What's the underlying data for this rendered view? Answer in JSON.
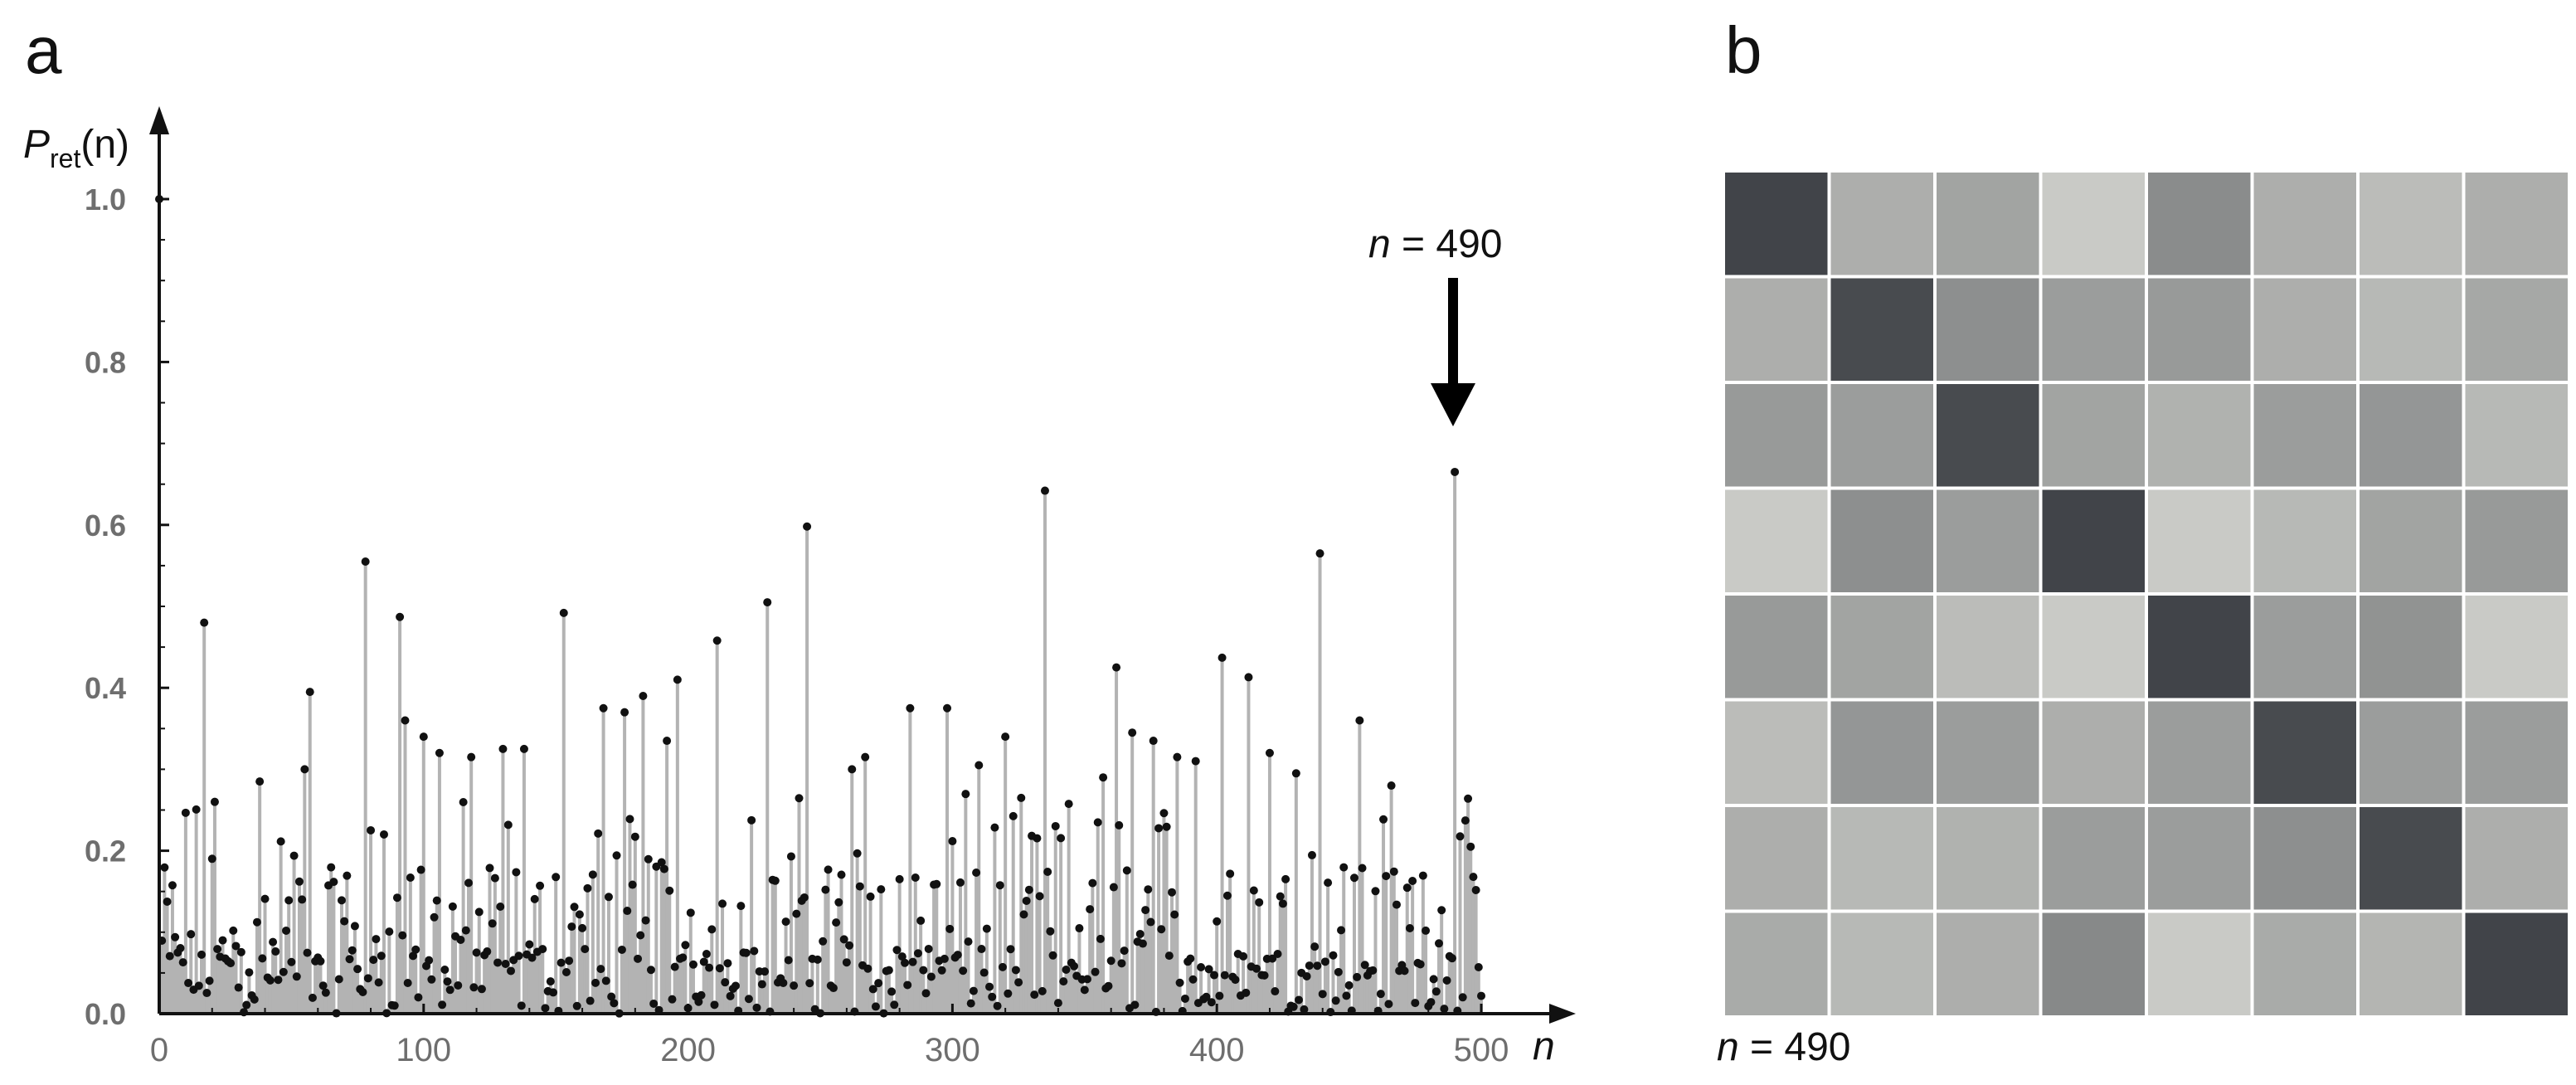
{
  "panels": {
    "a": {
      "label": "a"
    },
    "b": {
      "label": "b"
    }
  },
  "chart_data": [
    {
      "type": "scatter",
      "style": "stem",
      "panel": "a",
      "ylabel_main": "P",
      "ylabel_sub": "ret",
      "ylabel_arg": "(n)",
      "xlabel": "n",
      "xlim": [
        0,
        500
      ],
      "ylim": [
        0,
        1.0
      ],
      "x_ticks": [
        0,
        100,
        200,
        300,
        400,
        500
      ],
      "y_ticks": [
        "0.0",
        "0.2",
        "0.4",
        "0.6",
        "0.8",
        "1.0"
      ],
      "grid": false,
      "colors": {
        "stem": "#b3b3b3",
        "dot": "#111111",
        "axis": "#111111",
        "tick": "#6e6e6e"
      },
      "notable_points": [
        {
          "x": 0,
          "y": 1.0
        },
        {
          "x": 17,
          "y": 0.48
        },
        {
          "x": 21,
          "y": 0.26
        },
        {
          "x": 38,
          "y": 0.285
        },
        {
          "x": 55,
          "y": 0.3
        },
        {
          "x": 57,
          "y": 0.395
        },
        {
          "x": 78,
          "y": 0.555
        },
        {
          "x": 85,
          "y": 0.22
        },
        {
          "x": 91,
          "y": 0.487
        },
        {
          "x": 93,
          "y": 0.36
        },
        {
          "x": 100,
          "y": 0.34
        },
        {
          "x": 106,
          "y": 0.32
        },
        {
          "x": 118,
          "y": 0.315
        },
        {
          "x": 130,
          "y": 0.325
        },
        {
          "x": 138,
          "y": 0.325
        },
        {
          "x": 153,
          "y": 0.492
        },
        {
          "x": 168,
          "y": 0.375
        },
        {
          "x": 176,
          "y": 0.37
        },
        {
          "x": 183,
          "y": 0.39
        },
        {
          "x": 192,
          "y": 0.335
        },
        {
          "x": 196,
          "y": 0.41
        },
        {
          "x": 211,
          "y": 0.458
        },
        {
          "x": 230,
          "y": 0.505
        },
        {
          "x": 245,
          "y": 0.598
        },
        {
          "x": 262,
          "y": 0.3
        },
        {
          "x": 267,
          "y": 0.315
        },
        {
          "x": 284,
          "y": 0.375
        },
        {
          "x": 298,
          "y": 0.375
        },
        {
          "x": 310,
          "y": 0.305
        },
        {
          "x": 320,
          "y": 0.34
        },
        {
          "x": 335,
          "y": 0.642
        },
        {
          "x": 357,
          "y": 0.29
        },
        {
          "x": 362,
          "y": 0.425
        },
        {
          "x": 368,
          "y": 0.345
        },
        {
          "x": 376,
          "y": 0.335
        },
        {
          "x": 385,
          "y": 0.315
        },
        {
          "x": 392,
          "y": 0.31
        },
        {
          "x": 402,
          "y": 0.437
        },
        {
          "x": 412,
          "y": 0.413
        },
        {
          "x": 420,
          "y": 0.32
        },
        {
          "x": 430,
          "y": 0.295
        },
        {
          "x": 439,
          "y": 0.565
        },
        {
          "x": 454,
          "y": 0.36
        },
        {
          "x": 466,
          "y": 0.28
        },
        {
          "x": 490,
          "y": 0.665
        },
        {
          "x": 496,
          "y": 0.205
        }
      ],
      "background_points": {
        "count": 500,
        "y_range": [
          0.0,
          0.27
        ],
        "note": "dense cluster of small values"
      },
      "annotations": [
        {
          "text": "n = 490",
          "x": 490,
          "y": 0.665,
          "arrow": "down"
        }
      ]
    },
    {
      "type": "heatmap",
      "panel": "b",
      "rows": 8,
      "cols": 8,
      "caption": "n = 490",
      "values": [
        [
          0.92,
          0.3,
          0.36,
          0.14,
          0.5,
          0.3,
          0.22,
          0.3
        ],
        [
          0.3,
          0.88,
          0.48,
          0.4,
          0.42,
          0.3,
          0.24,
          0.34
        ],
        [
          0.42,
          0.4,
          0.88,
          0.36,
          0.28,
          0.4,
          0.44,
          0.24
        ],
        [
          0.14,
          0.48,
          0.4,
          0.92,
          0.14,
          0.24,
          0.36,
          0.42
        ],
        [
          0.42,
          0.36,
          0.22,
          0.14,
          0.92,
          0.4,
          0.46,
          0.14
        ],
        [
          0.22,
          0.44,
          0.4,
          0.3,
          0.4,
          0.88,
          0.4,
          0.4
        ],
        [
          0.3,
          0.24,
          0.28,
          0.4,
          0.4,
          0.48,
          0.88,
          0.3
        ],
        [
          0.32,
          0.24,
          0.3,
          0.52,
          0.14,
          0.32,
          0.26,
          0.92
        ]
      ],
      "colors": {
        "low": "#e1e2dc",
        "high": "#33363c",
        "grid": "#ffffff"
      }
    }
  ]
}
